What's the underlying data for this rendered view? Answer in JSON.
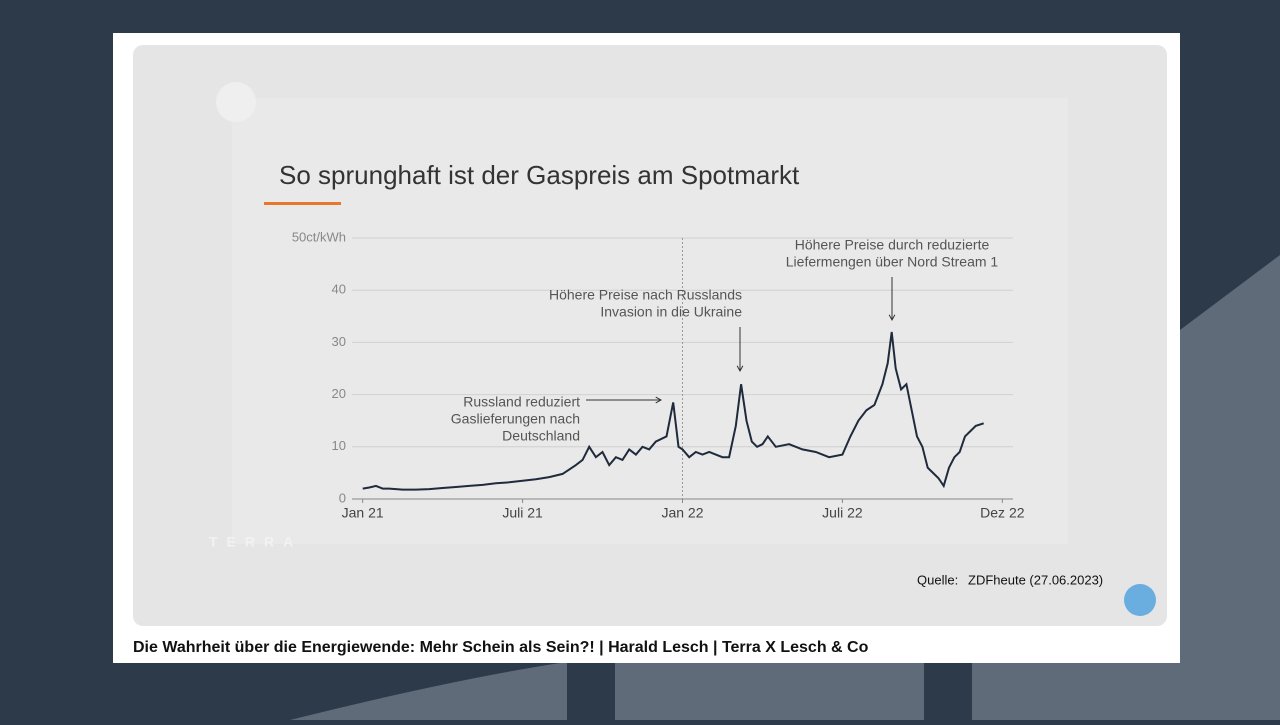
{
  "chart_data": {
    "type": "line",
    "title": "So sprunghaft ist der Gaspreis am Spotmarkt",
    "x": [
      0,
      0.25,
      0.5,
      0.75,
      1,
      1.5,
      2,
      2.5,
      3,
      3.5,
      4,
      4.5,
      5,
      5.5,
      6,
      6.5,
      7,
      7.5,
      8,
      8.25,
      8.5,
      8.75,
      9,
      9.25,
      9.5,
      9.75,
      10,
      10.25,
      10.5,
      10.75,
      11,
      11.4,
      11.65,
      11.85,
      12,
      12.25,
      12.5,
      12.75,
      13,
      13.5,
      13.75,
      14,
      14.2,
      14.4,
      14.6,
      14.8,
      15,
      15.2,
      15.5,
      16,
      16.5,
      17,
      17.5,
      18,
      18.3,
      18.6,
      18.9,
      19.2,
      19.5,
      19.7,
      19.85,
      20,
      20.2,
      20.4,
      20.6,
      20.8,
      21,
      21.2,
      21.4,
      21.6,
      21.8,
      22,
      22.2,
      22.4,
      22.6,
      22.8,
      23,
      23.3
    ],
    "values": [
      2,
      2.2,
      2.5,
      2,
      2,
      1.8,
      1.8,
      1.9,
      2.1,
      2.3,
      2.5,
      2.7,
      3,
      3.2,
      3.5,
      3.8,
      4.2,
      4.8,
      6.5,
      7.5,
      10,
      8,
      9,
      6.5,
      8,
      7.5,
      9.5,
      8.5,
      10,
      9.5,
      11,
      12,
      18.5,
      10,
      9.5,
      8,
      9,
      8.5,
      9,
      8,
      8,
      14,
      22,
      15,
      11,
      10,
      10.5,
      12,
      10,
      10.5,
      9.5,
      9,
      8,
      8.5,
      12,
      15,
      17,
      18,
      22,
      26,
      32,
      25,
      21,
      22,
      17,
      12,
      10,
      6,
      5,
      4,
      2.5,
      6,
      8,
      9,
      12,
      13,
      14,
      14.5
    ],
    "color": "#1f2a3c",
    "xlim": [
      -0.4,
      24.4
    ],
    "xticks": [
      {
        "value": 0,
        "label": "Jan 21"
      },
      {
        "value": 6,
        "label": "Juli 21"
      },
      {
        "value": 12,
        "label": "Jan 22"
      },
      {
        "value": 18,
        "label": "Juli 22"
      },
      {
        "value": 24,
        "label": "Dez 22"
      }
    ],
    "ylim": [
      0,
      50
    ],
    "yticks": [
      0,
      10,
      20,
      30,
      40,
      {
        "value": 50,
        "label": "50ct/kWh"
      }
    ],
    "grid": true,
    "annotations": [
      {
        "lines": [
          "Russland reduziert",
          "Gaslieferungen nach",
          "Deutschland"
        ]
      },
      {
        "lines": [
          "Höhere Preise nach Russlands",
          "Invasion in die Ukraine"
        ]
      },
      {
        "lines": [
          "Höhere Preise durch reduzierte",
          "Liefermengen über Nord Stream 1"
        ]
      }
    ]
  },
  "source": {
    "label": "Quelle:",
    "text": "ZDFheute (27.06.2023)"
  },
  "watermark": "TERRA",
  "caption": "Die Wahrheit über die Energiewende: Mehr Schein als Sein?! | Harald Lesch | Terra X Lesch & Co"
}
